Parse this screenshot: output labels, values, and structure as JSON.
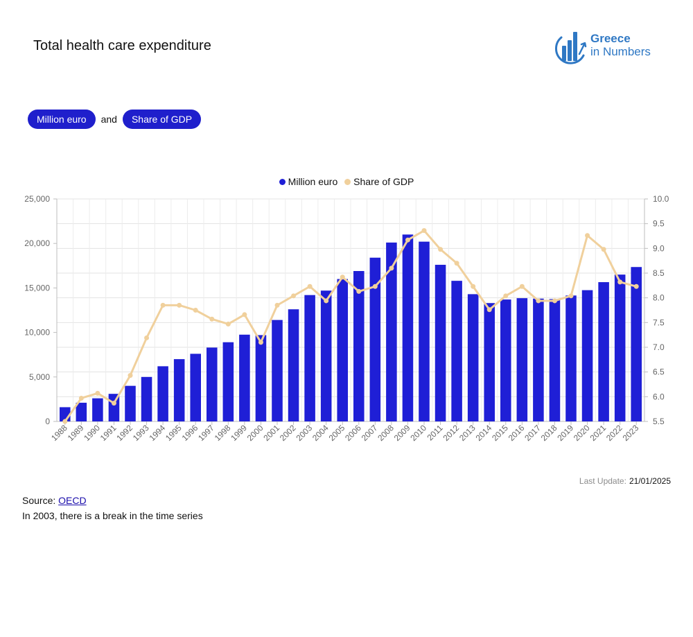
{
  "page": {
    "title": "Total health care expenditure"
  },
  "logo": {
    "line1": "Greece",
    "line2": "in Numbers",
    "color": "#2f78c4"
  },
  "controls": {
    "pill1": "Million euro",
    "connector": "and",
    "pill2": "Share of GDP"
  },
  "legend": {
    "series1": "Million euro",
    "series2": "Share of GDP"
  },
  "chart_data": {
    "type": "bar+line",
    "title": "",
    "categories": [
      "1988",
      "1989",
      "1990",
      "1991",
      "1992",
      "1993",
      "1994",
      "1995",
      "1996",
      "1997",
      "1998",
      "1999",
      "2000",
      "2001",
      "2002",
      "2003",
      "2004",
      "2005",
      "2006",
      "2007",
      "2008",
      "2009",
      "2010",
      "2011",
      "2012",
      "2013",
      "2014",
      "2015",
      "2016",
      "2017",
      "2018",
      "2019",
      "2020",
      "2021",
      "2022",
      "2023"
    ],
    "series": [
      {
        "name": "Million euro",
        "type": "bar",
        "axis": "left",
        "color": "#1f1fd6",
        "values": [
          1600,
          2100,
          2600,
          3100,
          4000,
          5000,
          6200,
          7000,
          7600,
          8300,
          8900,
          9750,
          9700,
          11400,
          12600,
          14200,
          14700,
          16000,
          16900,
          18400,
          20100,
          21000,
          20200,
          17600,
          15800,
          14300,
          13300,
          13700,
          13850,
          13800,
          13750,
          14150,
          14750,
          15650,
          16500,
          17350
        ]
      },
      {
        "name": "Share of GDP",
        "type": "line",
        "axis": "right",
        "color": "#f0d09c",
        "values": [
          5.5,
          5.97,
          6.07,
          5.87,
          6.43,
          7.19,
          7.85,
          7.85,
          7.75,
          7.57,
          7.47,
          7.66,
          7.1,
          7.85,
          8.04,
          8.23,
          7.94,
          8.42,
          8.13,
          8.23,
          8.6,
          9.17,
          9.36,
          8.98,
          8.7,
          8.23,
          7.76,
          8.04,
          8.23,
          7.94,
          7.94,
          8.04,
          9.26,
          8.98,
          8.32,
          8.23
        ]
      }
    ],
    "y_left": {
      "min": 0,
      "max": 25000,
      "ticks": [
        "0",
        "5,000",
        "10,000",
        "15,000",
        "20,000",
        "25,000"
      ]
    },
    "y_right": {
      "min": 5.5,
      "max": 10.0,
      "ticks": [
        "5.5",
        "6.0",
        "6.5",
        "7.0",
        "7.5",
        "8.0",
        "8.5",
        "9.0",
        "9.5",
        "10.0"
      ]
    },
    "grid": true,
    "legend_position": "top-center"
  },
  "footer": {
    "last_update_label": "Last Update:",
    "last_update_value": "21/01/2025",
    "source_label": "Source:",
    "source_link": "OECD",
    "note": "In 2003, there is a break in the time series"
  }
}
